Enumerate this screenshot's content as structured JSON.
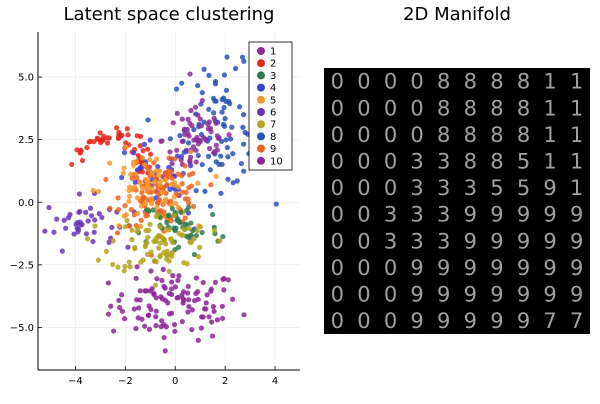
{
  "chart_data": [
    {
      "type": "scatter",
      "title": "Latent space clustering",
      "xlabel": "",
      "ylabel": "",
      "xlim": [
        -5.5,
        5
      ],
      "ylim": [
        -6.7,
        6.8
      ],
      "x_ticks": [
        -4,
        -2,
        0,
        2,
        4
      ],
      "y_ticks": [
        -5.0,
        -2.5,
        0.0,
        2.5,
        5.0
      ],
      "x_tick_labels": [
        "−4",
        "−2",
        "0",
        "2",
        "4"
      ],
      "y_tick_labels": [
        "−5.0",
        "−2.5",
        "0.0",
        "2.5",
        "5.0"
      ],
      "grid": true,
      "legend_position": "top-right",
      "series": [
        {
          "name": "1",
          "color": "#8e2a9a",
          "cx": 0.9,
          "cy": 2.5,
          "sx": 0.7,
          "sy": 0.8,
          "n": 60
        },
        {
          "name": "2",
          "color": "#e8261c",
          "cx": -2.6,
          "cy": 2.0,
          "sx": 0.9,
          "sy": 0.9,
          "n": 60
        },
        {
          "name": "3",
          "color": "#2e7d4f",
          "cx": 0.2,
          "cy": -1.0,
          "sx": 0.8,
          "sy": 0.6,
          "n": 50
        },
        {
          "name": "4",
          "color": "#3b3fd8",
          "cx": -0.8,
          "cy": 0.8,
          "sx": 0.9,
          "sy": 0.8,
          "n": 40
        },
        {
          "name": "5",
          "color": "#f49a2c",
          "cx": -1.2,
          "cy": 0.4,
          "sx": 0.9,
          "sy": 0.8,
          "n": 70
        },
        {
          "name": "6",
          "color": "#6a35b5",
          "cx": -3.8,
          "cy": -0.8,
          "sx": 0.7,
          "sy": 0.5,
          "n": 40
        },
        {
          "name": "7",
          "color": "#b4a31f",
          "cx": -0.6,
          "cy": -1.6,
          "sx": 1.0,
          "sy": 0.6,
          "n": 80
        },
        {
          "name": "8",
          "color": "#2751b5",
          "cx": 1.8,
          "cy": 3.0,
          "sx": 1.0,
          "sy": 1.2,
          "n": 90
        },
        {
          "name": "9",
          "color": "#f0601f",
          "cx": -0.5,
          "cy": 0.3,
          "sx": 0.8,
          "sy": 0.6,
          "n": 110
        },
        {
          "name": "10",
          "color": "#8d2396",
          "cx": 0.0,
          "cy": -4.1,
          "sx": 1.3,
          "sy": 0.7,
          "n": 110
        }
      ]
    },
    {
      "type": "image-grid",
      "title": "2D Manifold",
      "rows": 10,
      "cols": 10,
      "background": "#000000",
      "glyph_color": "#c8c8c8",
      "digits": [
        [
          "0",
          "0",
          "0",
          "0",
          "8",
          "8",
          "8",
          "8",
          "1",
          "1"
        ],
        [
          "0",
          "0",
          "0",
          "0",
          "8",
          "8",
          "8",
          "8",
          "1",
          "1"
        ],
        [
          "0",
          "0",
          "0",
          "0",
          "8",
          "8",
          "8",
          "8",
          "1",
          "1"
        ],
        [
          "0",
          "0",
          "0",
          "3",
          "3",
          "8",
          "8",
          "5",
          "1",
          "1"
        ],
        [
          "0",
          "0",
          "0",
          "3",
          "3",
          "3",
          "5",
          "5",
          "9",
          "1"
        ],
        [
          "0",
          "0",
          "3",
          "3",
          "3",
          "9",
          "9",
          "9",
          "9",
          "9"
        ],
        [
          "0",
          "0",
          "3",
          "3",
          "3",
          "9",
          "9",
          "9",
          "9",
          "9"
        ],
        [
          "0",
          "0",
          "0",
          "9",
          "9",
          "9",
          "9",
          "9",
          "9",
          "9"
        ],
        [
          "0",
          "0",
          "0",
          "9",
          "9",
          "9",
          "9",
          "9",
          "9",
          "9"
        ],
        [
          "0",
          "0",
          "0",
          "9",
          "9",
          "9",
          "9",
          "9",
          "7",
          "7"
        ]
      ]
    }
  ]
}
